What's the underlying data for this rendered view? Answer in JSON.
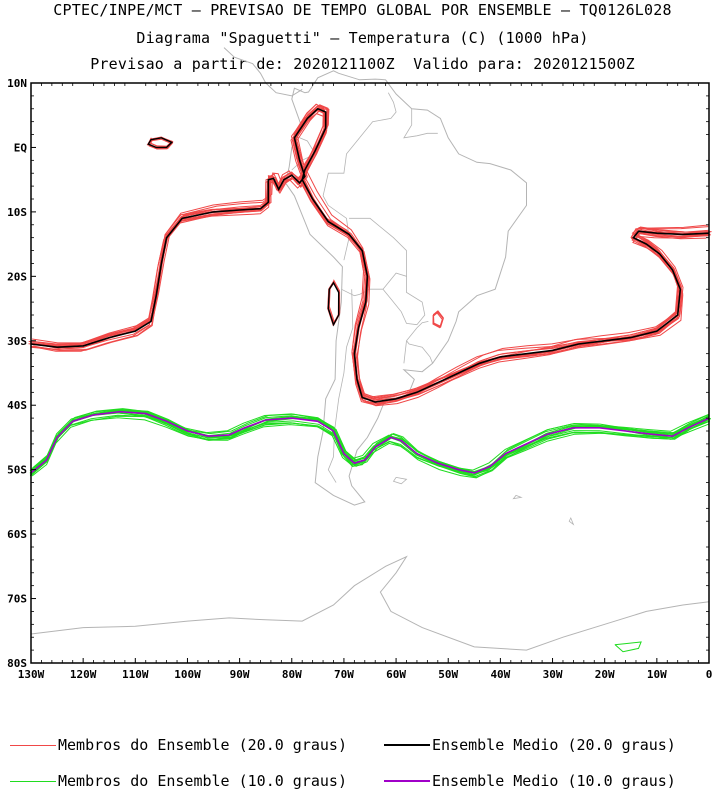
{
  "title": {
    "line1": "CPTEC/INPE/MCT — PREVISAO DE TEMPO GLOBAL POR ENSEMBLE — TQ0126L028",
    "line2": "Diagrama \"Spaguetti\" — Temperatura (C) (1000 hPa)",
    "line3": "Previsao a partir de: 2020121100Z  Valido para: 2020121500Z"
  },
  "map": {
    "lon_range": [
      -130,
      0
    ],
    "lat_range": [
      -80,
      10
    ],
    "lat_labels": [
      "10N",
      "EQ",
      "10S",
      "20S",
      "30S",
      "40S",
      "50S",
      "60S",
      "70S",
      "80S"
    ],
    "lat_values": [
      10,
      0,
      -10,
      -20,
      -30,
      -40,
      -50,
      -60,
      -70,
      -80
    ],
    "lon_labels": [
      "130W",
      "120W",
      "110W",
      "100W",
      "90W",
      "80W",
      "70W",
      "60W",
      "50W",
      "40W",
      "30W",
      "20W",
      "10W",
      "0"
    ],
    "lon_values": [
      -130,
      -120,
      -110,
      -100,
      -90,
      -80,
      -70,
      -60,
      -50,
      -40,
      -30,
      -20,
      -10,
      0
    ]
  },
  "colors": {
    "member20": "#f04848",
    "mean20": "#000000",
    "member10": "#20dc20",
    "mean10": "#a000c8",
    "coast": "#b4b4b4"
  },
  "legend": {
    "member20": "Membros do Ensemble (20.0 graus)",
    "mean20": "Ensemble Medio (20.0 graus)",
    "member10": "Membros do Ensemble (10.0 graus)",
    "mean10": "Ensemble Medio (10.0 graus)"
  },
  "contours": {
    "iso20_main": [
      [
        -130,
        -30.5
      ],
      [
        -125,
        -31
      ],
      [
        -120,
        -30.8
      ],
      [
        -115,
        -29.5
      ],
      [
        -110,
        -28.5
      ],
      [
        -107,
        -27
      ],
      [
        -106,
        -23
      ],
      [
        -105,
        -18
      ],
      [
        -104,
        -14
      ],
      [
        -101,
        -11
      ],
      [
        -95,
        -10
      ],
      [
        -90,
        -9.7
      ],
      [
        -86,
        -9.5
      ],
      [
        -84.5,
        -8.5
      ],
      [
        -84.5,
        -5
      ],
      [
        -83.5,
        -4.8
      ],
      [
        -82.5,
        -6.5
      ],
      [
        -81.5,
        -5
      ],
      [
        -80,
        -4.3
      ],
      [
        -78.5,
        -5.5
      ],
      [
        -77.5,
        -4.5
      ],
      [
        -78.5,
        -2
      ],
      [
        -79.5,
        1.5
      ],
      [
        -77,
        4.5
      ],
      [
        -75,
        6
      ],
      [
        -73.5,
        5.5
      ],
      [
        -73.5,
        3
      ],
      [
        -75.5,
        -0.5
      ],
      [
        -77.5,
        -3.5
      ],
      [
        -78,
        -5
      ],
      [
        -76,
        -8
      ],
      [
        -73,
        -11.5
      ],
      [
        -69,
        -13.5
      ],
      [
        -66.5,
        -16
      ],
      [
        -65.5,
        -20
      ],
      [
        -65.8,
        -24
      ],
      [
        -67.2,
        -28
      ],
      [
        -68,
        -32
      ],
      [
        -67.5,
        -36
      ],
      [
        -66.5,
        -38.8
      ],
      [
        -64,
        -39.5
      ],
      [
        -60,
        -39
      ],
      [
        -56,
        -38
      ],
      [
        -52,
        -36.5
      ],
      [
        -48,
        -35
      ],
      [
        -44,
        -33.5
      ],
      [
        -40,
        -32.5
      ],
      [
        -35,
        -32
      ],
      [
        -30,
        -31.5
      ],
      [
        -25,
        -30.5
      ],
      [
        -20,
        -30
      ],
      [
        -15,
        -29.5
      ],
      [
        -10,
        -28.5
      ],
      [
        -6,
        -26
      ],
      [
        -5.5,
        -22
      ],
      [
        -7,
        -19
      ],
      [
        -9.5,
        -16.5
      ],
      [
        -12,
        -15
      ],
      [
        -14.5,
        -14
      ],
      [
        -13.5,
        -13
      ],
      [
        -10,
        -13.3
      ],
      [
        -5,
        -13.5
      ],
      [
        0,
        -13.3
      ]
    ],
    "iso20_blob1": [
      [
        -107,
        1.2
      ],
      [
        -105,
        1.5
      ],
      [
        -103,
        0.8
      ],
      [
        -104,
        0
      ],
      [
        -106,
        0
      ],
      [
        -107.5,
        0.5
      ],
      [
        -107,
        1.2
      ]
    ],
    "iso20_blob2": [
      [
        -72,
        -21
      ],
      [
        -71,
        -22.5
      ],
      [
        -71,
        -26
      ],
      [
        -72,
        -27.5
      ],
      [
        -73,
        -25
      ],
      [
        -72.8,
        -22
      ],
      [
        -72,
        -21
      ]
    ],
    "iso20_blob3": [
      [
        -52,
        -25.5
      ],
      [
        -51,
        -26.5
      ],
      [
        -51.5,
        -27.8
      ],
      [
        -52.8,
        -27.3
      ],
      [
        -52.8,
        -26
      ],
      [
        -52,
        -25.5
      ]
    ],
    "iso10_main": [
      [
        -130,
        -50.5
      ],
      [
        -127,
        -48.5
      ],
      [
        -125,
        -45
      ],
      [
        -122,
        -42.5
      ],
      [
        -118,
        -41.5
      ],
      [
        -113,
        -41
      ],
      [
        -108,
        -41.3
      ],
      [
        -104,
        -42.5
      ],
      [
        -100,
        -44
      ],
      [
        -96,
        -44.8
      ],
      [
        -92,
        -44.6
      ],
      [
        -89,
        -43.5
      ],
      [
        -85,
        -42.3
      ],
      [
        -80,
        -42
      ],
      [
        -75,
        -42.5
      ],
      [
        -72,
        -44
      ],
      [
        -70,
        -47.5
      ],
      [
        -68,
        -49
      ],
      [
        -66,
        -48.5
      ],
      [
        -64,
        -46.5
      ],
      [
        -61,
        -45
      ],
      [
        -59,
        -45.5
      ],
      [
        -56,
        -47.5
      ],
      [
        -52,
        -49
      ],
      [
        -48,
        -50
      ],
      [
        -45,
        -50.5
      ],
      [
        -42,
        -49.5
      ],
      [
        -39,
        -47.5
      ],
      [
        -35,
        -46
      ],
      [
        -31,
        -44.5
      ],
      [
        -26,
        -43.5
      ],
      [
        -21,
        -43.5
      ],
      [
        -16,
        -44
      ],
      [
        -11,
        -44.5
      ],
      [
        -7,
        -44.8
      ],
      [
        -4,
        -43.5
      ],
      [
        0,
        -42
      ]
    ],
    "iso10_blob": [
      [
        -18,
        -77.2
      ],
      [
        -15.5,
        -77
      ],
      [
        -13,
        -76.8
      ],
      [
        -13.5,
        -77.8
      ],
      [
        -16.5,
        -78.3
      ],
      [
        -18,
        -77.2
      ]
    ]
  }
}
